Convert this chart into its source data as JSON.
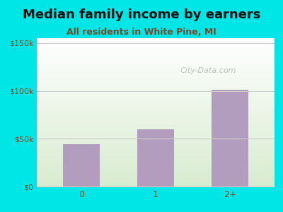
{
  "title": "Median family income by earners",
  "subtitle": "All residents in White Pine, MI",
  "categories": [
    "0",
    "1",
    "2+"
  ],
  "values": [
    44000,
    60000,
    101000
  ],
  "bar_color": "#b39dbe",
  "outer_bg": "#00e5e5",
  "yticks": [
    0,
    50000,
    100000,
    150000
  ],
  "ytick_labels": [
    "$0",
    "$50k",
    "$100k",
    "$150k"
  ],
  "ylim": [
    0,
    155000
  ],
  "title_fontsize": 13,
  "subtitle_fontsize": 9,
  "subtitle_color": "#7a4a2a",
  "tick_color": "#7a4a2a",
  "grid_color": "#cccccc",
  "watermark": "City-Data.com"
}
